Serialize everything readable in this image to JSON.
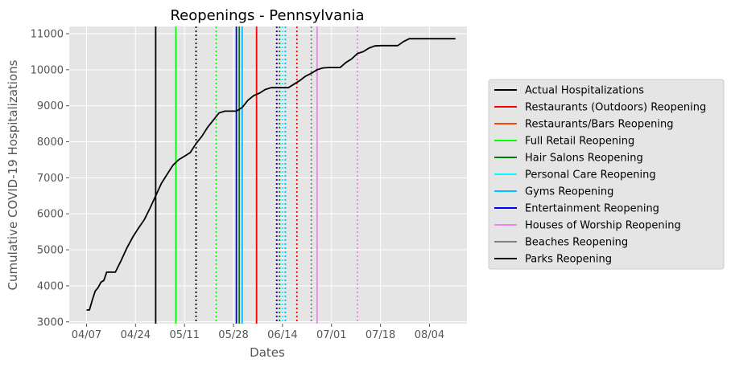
{
  "chart_data": {
    "type": "line",
    "title": "Reopenings - Pennsylvania",
    "xlabel": "Dates",
    "ylabel": "Cumulative COVID-19 Hospitalizations",
    "xlim": [
      "2020-04-01",
      "2020-08-17"
    ],
    "ylim": [
      2950,
      11200
    ],
    "grid": true,
    "legend_position": "right",
    "x_ticks": [
      {
        "date": "2020-04-07",
        "label": "04/07"
      },
      {
        "date": "2020-04-24",
        "label": "04/24"
      },
      {
        "date": "2020-05-11",
        "label": "05/11"
      },
      {
        "date": "2020-05-28",
        "label": "05/28"
      },
      {
        "date": "2020-06-14",
        "label": "06/14"
      },
      {
        "date": "2020-07-01",
        "label": "07/01"
      },
      {
        "date": "2020-07-18",
        "label": "07/18"
      },
      {
        "date": "2020-08-04",
        "label": "08/04"
      }
    ],
    "y_ticks": [
      3000,
      4000,
      5000,
      6000,
      7000,
      8000,
      9000,
      10000,
      11000
    ],
    "series": [
      {
        "name": "Actual Hospitalizations",
        "color": "#000000",
        "x": [
          "2020-04-07",
          "2020-04-08",
          "2020-04-09",
          "2020-04-10",
          "2020-04-11",
          "2020-04-12",
          "2020-04-13",
          "2020-04-14",
          "2020-04-15",
          "2020-04-17",
          "2020-04-19",
          "2020-04-21",
          "2020-04-23",
          "2020-04-25",
          "2020-04-27",
          "2020-04-29",
          "2020-05-01",
          "2020-05-03",
          "2020-05-05",
          "2020-05-07",
          "2020-05-09",
          "2020-05-11",
          "2020-05-13",
          "2020-05-15",
          "2020-05-17",
          "2020-05-19",
          "2020-05-21",
          "2020-05-23",
          "2020-05-25",
          "2020-05-27",
          "2020-05-29",
          "2020-05-31",
          "2020-06-02",
          "2020-06-04",
          "2020-06-06",
          "2020-06-08",
          "2020-06-10",
          "2020-06-12",
          "2020-06-14",
          "2020-06-16",
          "2020-06-18",
          "2020-06-20",
          "2020-06-22",
          "2020-06-24",
          "2020-06-26",
          "2020-06-28",
          "2020-06-30",
          "2020-07-02",
          "2020-07-04",
          "2020-07-06",
          "2020-07-08",
          "2020-07-10",
          "2020-07-12",
          "2020-07-14",
          "2020-07-16",
          "2020-07-18",
          "2020-07-20",
          "2020-07-22",
          "2020-07-24",
          "2020-07-26",
          "2020-07-28",
          "2020-07-30",
          "2020-08-01",
          "2020-08-03",
          "2020-08-05",
          "2020-08-07",
          "2020-08-09",
          "2020-08-11",
          "2020-08-13"
        ],
        "y": [
          3330,
          3330,
          3600,
          3850,
          3950,
          4100,
          4150,
          4380,
          4380,
          4380,
          4700,
          5050,
          5350,
          5600,
          5830,
          6150,
          6500,
          6850,
          7100,
          7350,
          7500,
          7600,
          7700,
          7950,
          8150,
          8400,
          8600,
          8800,
          8850,
          8850,
          8850,
          8950,
          9150,
          9280,
          9350,
          9450,
          9500,
          9500,
          9500,
          9500,
          9600,
          9700,
          9820,
          9900,
          10000,
          10050,
          10060,
          10060,
          10060,
          10200,
          10300,
          10450,
          10500,
          10600,
          10660,
          10670,
          10670,
          10670,
          10670,
          10780,
          10860,
          10860,
          10860,
          10860,
          10860,
          10860,
          10860,
          10860,
          10860
        ]
      }
    ],
    "reopenings": [
      {
        "name": "Restaurants (Outdoors) Reopening",
        "color": "#ff0000",
        "events": [
          {
            "date": "2020-06-05",
            "style": "solid"
          },
          {
            "date": "2020-06-19",
            "style": "dotted"
          }
        ]
      },
      {
        "name": "Restaurants/Bars Reopening",
        "color": "#ff4500",
        "events": [
          {
            "date": "2020-06-12",
            "style": "dotted"
          }
        ]
      },
      {
        "name": "Full Retail Reopening",
        "color": "#00ff00",
        "events": [
          {
            "date": "2020-05-08",
            "style": "solid"
          },
          {
            "date": "2020-05-22",
            "style": "dotted"
          }
        ]
      },
      {
        "name": "Hair Salons Reopening",
        "color": "#008000",
        "events": [
          {
            "date": "2020-05-30",
            "style": "solid"
          },
          {
            "date": "2020-06-13",
            "style": "dotted"
          }
        ]
      },
      {
        "name": "Personal Care Reopening",
        "color": "#00ffff",
        "events": [
          {
            "date": "2020-05-31",
            "style": "solid"
          },
          {
            "date": "2020-06-14",
            "style": "dotted"
          }
        ]
      },
      {
        "name": "Gyms Reopening",
        "color": "#00bfff",
        "events": [
          {
            "date": "2020-05-31",
            "style": "solid"
          },
          {
            "date": "2020-06-15",
            "style": "dotted"
          }
        ]
      },
      {
        "name": "Entertainment Reopening",
        "color": "#0000ff",
        "events": [
          {
            "date": "2020-05-29",
            "style": "solid"
          },
          {
            "date": "2020-06-12",
            "style": "dotted"
          }
        ]
      },
      {
        "name": "Houses of Worship Reopening",
        "color": "#ee82ee",
        "events": [
          {
            "date": "2020-06-26",
            "style": "solid"
          },
          {
            "date": "2020-07-10",
            "style": "dotted"
          }
        ]
      },
      {
        "name": "Beaches Reopening",
        "color": "#808080",
        "events": [
          {
            "date": "2020-06-24",
            "style": "dotted"
          }
        ]
      },
      {
        "name": "Parks Reopening",
        "color": "#000000",
        "events": [
          {
            "date": "2020-05-01",
            "style": "solid"
          },
          {
            "date": "2020-05-15",
            "style": "dotted"
          }
        ]
      }
    ],
    "legend": [
      {
        "label": "Actual Hospitalizations",
        "color": "#000000"
      },
      {
        "label": "Restaurants (Outdoors) Reopening",
        "color": "#ff0000"
      },
      {
        "label": "Restaurants/Bars Reopening",
        "color": "#ff4500"
      },
      {
        "label": "Full Retail Reopening",
        "color": "#00ff00"
      },
      {
        "label": "Hair Salons Reopening",
        "color": "#008000"
      },
      {
        "label": "Personal Care Reopening",
        "color": "#00ffff"
      },
      {
        "label": "Gyms Reopening",
        "color": "#00bfff"
      },
      {
        "label": "Entertainment Reopening",
        "color": "#0000ff"
      },
      {
        "label": "Houses of Worship Reopening",
        "color": "#ee82ee"
      },
      {
        "label": "Beaches Reopening",
        "color": "#808080"
      },
      {
        "label": "Parks Reopening",
        "color": "#000000"
      }
    ]
  }
}
